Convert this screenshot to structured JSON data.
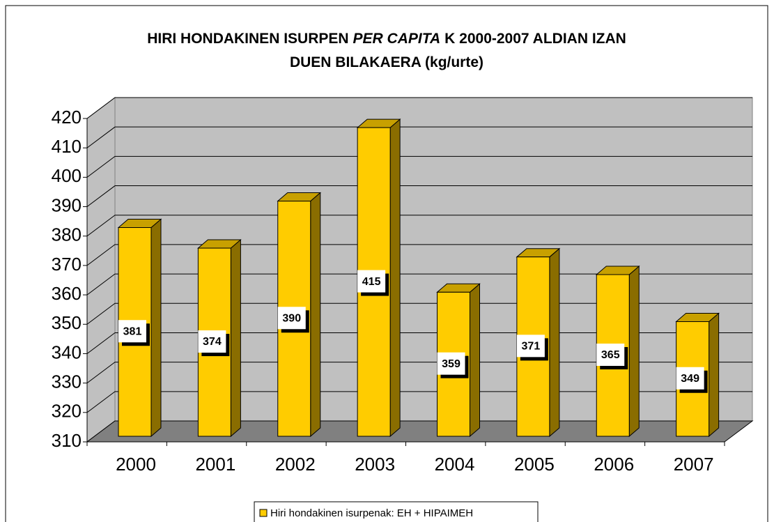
{
  "chart_data": {
    "type": "bar3d",
    "title": [
      "HIRI HONDAKINEN ISURPEN",
      "PER CAPITA",
      "K 2000-2007 ALDIAN IZAN",
      "DUEN BILAKAERA (kg/urte)"
    ],
    "categories": [
      "2000",
      "2001",
      "2002",
      "2003",
      "2004",
      "2005",
      "2006",
      "2007"
    ],
    "series": [
      {
        "name": "Hiri hondakinen isurpenak: EH + HIPAIMEH",
        "color": "#ffcc00",
        "values": [
          381,
          374,
          390,
          415,
          359,
          371,
          365,
          349
        ]
      }
    ],
    "ylim": [
      310,
      420
    ],
    "yticks": [
      310,
      320,
      330,
      340,
      350,
      360,
      370,
      380,
      390,
      400,
      410,
      420
    ],
    "grid": true,
    "legend": "bottom"
  }
}
